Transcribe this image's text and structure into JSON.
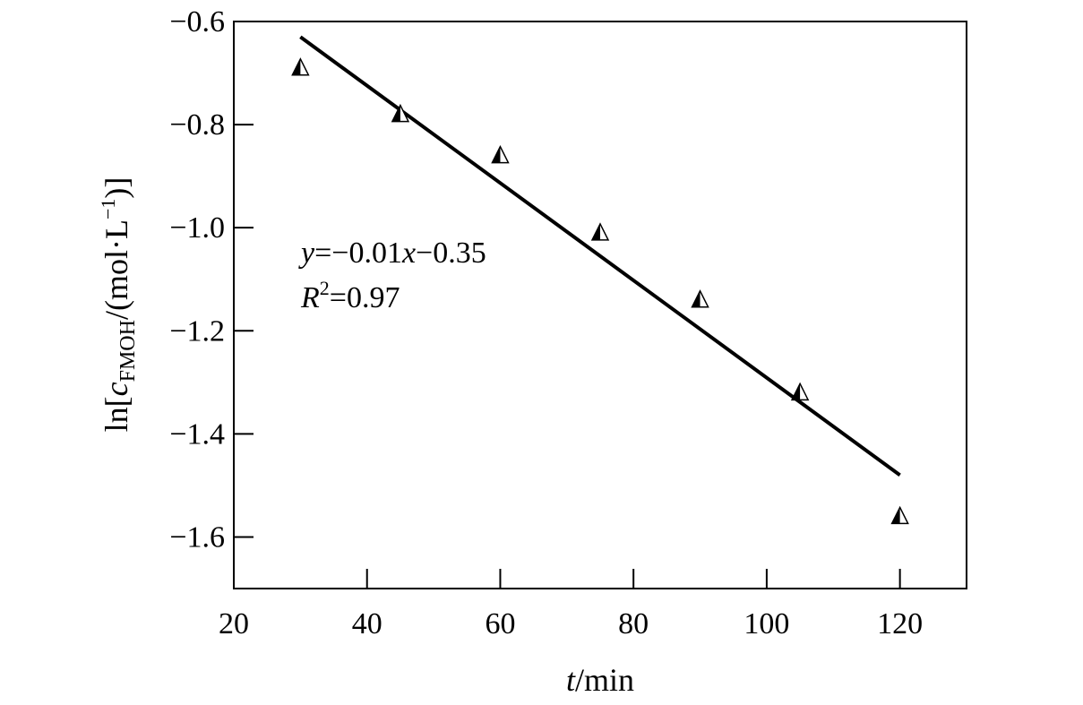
{
  "chart_data": {
    "type": "scatter",
    "title": "",
    "xlabel": {
      "var": "t",
      "unit": "/min"
    },
    "ylabel": {
      "prefix": "ln[",
      "var": "c",
      "sub": "FMOH",
      "unit_open": "/(mol·L",
      "sup": "−1",
      "close": ")]"
    },
    "xlim": [
      20,
      130
    ],
    "ylim": [
      -1.7,
      -0.6
    ],
    "xticks": [
      20,
      40,
      60,
      80,
      100,
      120
    ],
    "xtick_labels": [
      "20",
      "40",
      "60",
      "80",
      "100",
      "120"
    ],
    "yticks": [
      -0.6,
      -0.8,
      -1.0,
      -1.2,
      -1.4,
      -1.6
    ],
    "ytick_labels": [
      "−0.6",
      "−0.8",
      "−1.0",
      "−1.2",
      "−1.4",
      "−1.6"
    ],
    "grid": false,
    "series": [
      {
        "marker": "half-filled-triangle",
        "x": [
          30,
          45,
          60,
          75,
          90,
          105,
          120
        ],
        "y": [
          -0.69,
          -0.78,
          -0.86,
          -1.01,
          -1.14,
          -1.32,
          -1.56
        ]
      }
    ],
    "fit_line": {
      "x": [
        30,
        120
      ],
      "y": [
        -0.63,
        -1.48
      ]
    },
    "annotation": {
      "line1": {
        "var": "y",
        "text": "=−0.01",
        "var2": "x",
        "text2": "−0.35"
      },
      "line2": {
        "var": "R",
        "sup": "2",
        "text": "=0.97"
      }
    }
  }
}
